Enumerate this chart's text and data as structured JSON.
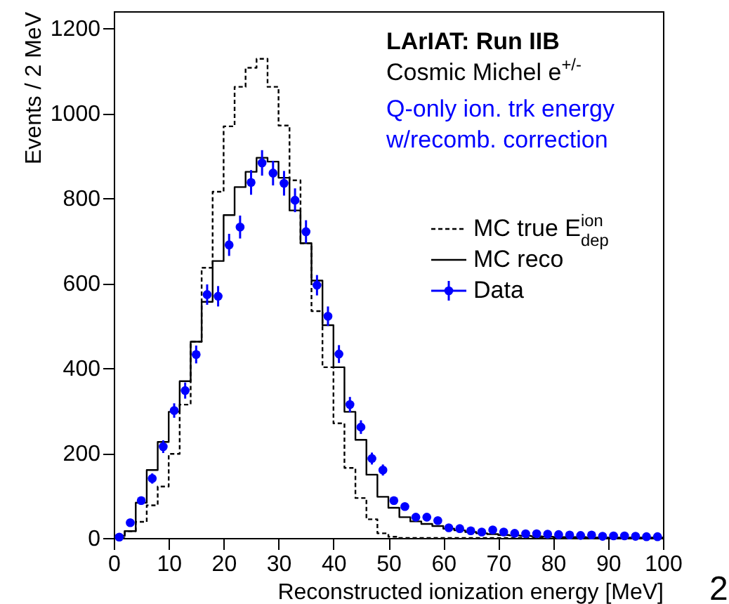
{
  "chart_data": {
    "type": "histogram",
    "xlabel": "Reconstructed ionization energy [MeV]",
    "ylabel": "Events / 2 MeV",
    "annotations": [
      "LArIAT: Run IIB",
      "Cosmic Michel e$^{+/-}$",
      "Q-only ion. trk energy",
      "w/recomb. correction",
      "2"
    ],
    "bins": [
      0,
      2,
      4,
      6,
      8,
      10,
      12,
      14,
      16,
      18,
      20,
      22,
      24,
      26,
      28,
      30,
      32,
      34,
      36,
      38,
      40,
      42,
      44,
      46,
      48,
      50,
      52,
      54,
      56,
      58,
      60,
      62,
      64,
      66,
      68,
      70,
      72,
      74,
      76,
      78,
      80,
      82,
      84,
      86,
      88,
      90,
      92,
      94,
      96,
      98,
      100
    ],
    "series": [
      {
        "name": "MC true E$^{ion}$$_{dep}$",
        "color": "#000000",
        "line_style": "dashed",
        "values": [
          0,
          16,
          38,
          77,
          121,
          198,
          314,
          462,
          636,
          815,
          969,
          1062,
          1107,
          1128,
          1062,
          971,
          842,
          694,
          534,
          402,
          270,
          165,
          94,
          44,
          11,
          3,
          0,
          0,
          0,
          0,
          0,
          0,
          0,
          0,
          0,
          0,
          0,
          0,
          0,
          0,
          0,
          0,
          0,
          0,
          0,
          0,
          0,
          0,
          0,
          0
        ]
      },
      {
        "name": "MC reco",
        "color": "#000000",
        "line_style": "solid",
        "values": [
          5,
          16,
          83,
          160,
          226,
          297,
          369,
          462,
          556,
          652,
          760,
          826,
          862,
          895,
          886,
          848,
          771,
          694,
          606,
          501,
          402,
          297,
          231,
          149,
          97,
          71,
          49,
          39,
          33,
          28,
          22,
          18,
          14,
          11,
          9,
          7,
          6,
          5,
          4,
          3,
          2,
          2,
          2,
          1,
          1,
          1,
          1,
          1,
          1,
          1
        ]
      },
      {
        "name": "Data",
        "type": "scatter",
        "color": "#0000ff",
        "marker": "circle",
        "x": [
          1,
          3,
          5,
          7,
          9,
          11,
          13,
          15,
          17,
          19,
          21,
          23,
          25,
          27,
          29,
          31,
          33,
          35,
          37,
          39,
          41,
          43,
          45,
          47,
          49,
          51,
          53,
          55,
          57,
          59,
          61,
          63,
          65,
          67,
          69,
          71,
          73,
          75,
          77,
          79,
          81,
          83,
          85,
          87,
          89,
          91,
          93,
          95,
          97,
          99
        ],
        "values": [
          2,
          36,
          88,
          140,
          215,
          300,
          347,
          432,
          573,
          569,
          690,
          732,
          837,
          883,
          859,
          835,
          795,
          721,
          595,
          522,
          433,
          314,
          261,
          187,
          160,
          88,
          74,
          49,
          49,
          41,
          24,
          22,
          17,
          14,
          19,
          14,
          11,
          10,
          10,
          9,
          8,
          7,
          6,
          7,
          4,
          5,
          5,
          4,
          3,
          3
        ],
        "errors": [
          null,
          6,
          9,
          12,
          15,
          17,
          19,
          21,
          24,
          24,
          26,
          27,
          29,
          30,
          29,
          29,
          28,
          27,
          24,
          23,
          21,
          18,
          16,
          14,
          13,
          9,
          9,
          7,
          7,
          6,
          5,
          5,
          4,
          4,
          4,
          4,
          3,
          3,
          3,
          3,
          3,
          3,
          2,
          3,
          2,
          2,
          2,
          2,
          2,
          2
        ]
      }
    ],
    "xlim": [
      0,
      100
    ],
    "xticks": [
      0,
      10,
      20,
      30,
      40,
      50,
      60,
      70,
      80,
      90,
      100
    ],
    "ylim": [
      0,
      1240
    ],
    "yticks": [
      0,
      200,
      400,
      600,
      800,
      1000,
      1200
    ],
    "grid": false,
    "legend": "right"
  }
}
